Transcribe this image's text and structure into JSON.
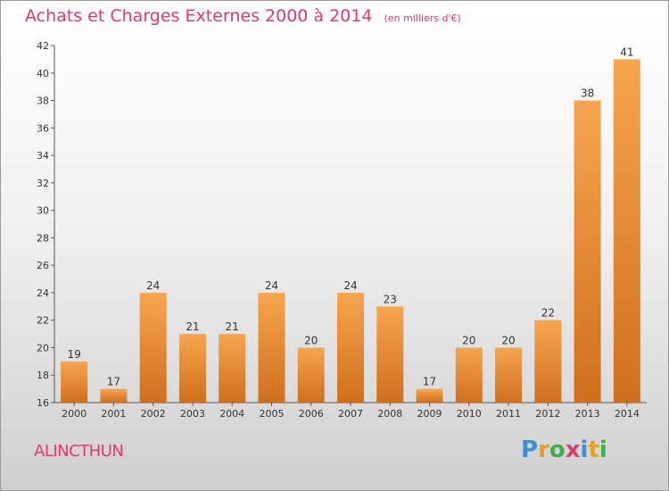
{
  "page": {
    "title": "Achats et Charges Externes 2000 à 2014",
    "unit": "(en milliers d'€)",
    "commune": "ALINCTHUN",
    "brand": "Proxiti"
  },
  "colors": {
    "title": "#e03a6e",
    "bar_light": "#f7a54f",
    "bar_dark": "#cf6f1c",
    "axis": "#555555",
    "brand_letters": [
      "#3a8fd8",
      "#e8a020",
      "#3ab04a",
      "#e03a6e",
      "#3a8fd8",
      "#e8a020",
      "#3ab04a"
    ]
  },
  "chart_data": {
    "type": "bar",
    "title": "Achats et Charges Externes 2000 à 2014",
    "subtitle": "(en milliers d'€)",
    "xlabel": "",
    "ylabel": "",
    "categories": [
      "2000",
      "2001",
      "2002",
      "2003",
      "2004",
      "2005",
      "2006",
      "2007",
      "2008",
      "2009",
      "2010",
      "2011",
      "2012",
      "2013",
      "2014"
    ],
    "values": [
      19,
      17,
      24,
      21,
      21,
      24,
      20,
      24,
      23,
      17,
      20,
      20,
      22,
      38,
      41
    ],
    "ylim": [
      16,
      42
    ],
    "yticks": [
      16,
      18,
      20,
      22,
      24,
      26,
      28,
      30,
      32,
      34,
      36,
      38,
      40,
      42
    ],
    "grid": false,
    "legend": "none"
  }
}
